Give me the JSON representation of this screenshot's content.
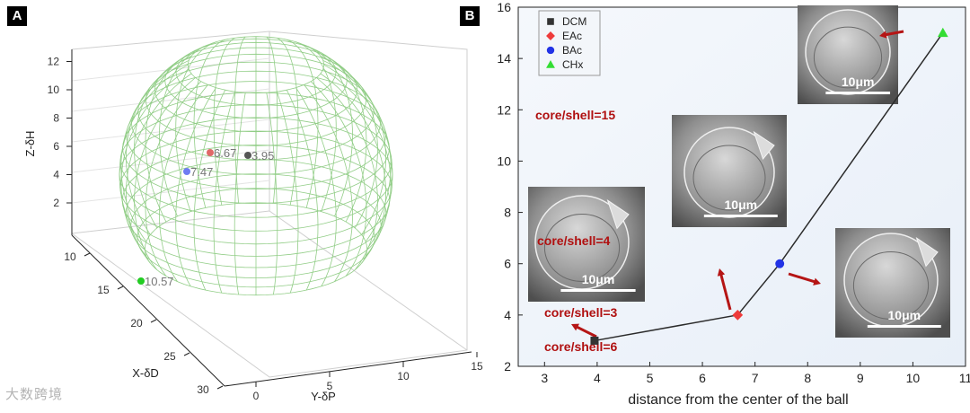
{
  "panels": {
    "a_label": "A",
    "b_label": "B"
  },
  "watermark": "大数跨境",
  "colors": {
    "mesh": "#86c87a",
    "line": "#2b2b2b",
    "bg_b": "#e8eff8"
  },
  "chart_data": [
    {
      "type": "scatter",
      "panel": "A",
      "xlabel": "X-δD",
      "ylabel": "Y-δP",
      "zlabel": "Z-δH",
      "x_ticks": [
        "10",
        "15",
        "20",
        "25",
        "30"
      ],
      "y_ticks": [
        "0",
        "5",
        "10",
        "15"
      ],
      "z_ticks": [
        "2",
        "4",
        "6",
        "8",
        "10",
        "12"
      ],
      "series": [
        {
          "label": "6.67",
          "color": "#e06868"
        },
        {
          "label": "3.95",
          "color": "#555555"
        },
        {
          "label": "7.47",
          "color": "#6f7cf2"
        },
        {
          "label": "10.57",
          "color": "#22cc22"
        }
      ]
    },
    {
      "type": "line",
      "panel": "B",
      "xlabel": "distance from the center of the ball",
      "ylabel": "",
      "xlim": [
        2.5,
        11
      ],
      "ylim": [
        2,
        16
      ],
      "x_ticks": [
        3,
        4,
        5,
        6,
        7,
        8,
        9,
        10,
        11
      ],
      "y_ticks": [
        2,
        4,
        6,
        8,
        10,
        12,
        14,
        16
      ],
      "x_tick_labels": [
        "3",
        "4",
        "5",
        "6",
        "7",
        "8",
        "9",
        "10",
        "11"
      ],
      "y_tick_labels": [
        "2",
        "4",
        "6",
        "8",
        "10",
        "12",
        "14",
        "16"
      ],
      "series": [
        {
          "name": "DCM",
          "x": 3.95,
          "y": 3,
          "marker": "square",
          "color": "#333333"
        },
        {
          "name": "EAc",
          "x": 6.67,
          "y": 4,
          "marker": "diamond",
          "color": "#ee3b3b"
        },
        {
          "name": "BAc",
          "x": 7.47,
          "y": 6,
          "marker": "circle",
          "color": "#2233e6"
        },
        {
          "name": "CHx",
          "x": 10.57,
          "y": 15,
          "marker": "triangle",
          "color": "#33dd33"
        }
      ],
      "legend_position": "top-left",
      "insets": [
        {
          "scale_label": "10μm",
          "caption": "core/shell=3"
        },
        {
          "scale_label": "10μm",
          "caption": "core/shell=4"
        },
        {
          "scale_label": "10μm",
          "caption": "core/shell=6"
        },
        {
          "scale_label": "10μm",
          "caption": "core/shell=15"
        }
      ]
    }
  ]
}
